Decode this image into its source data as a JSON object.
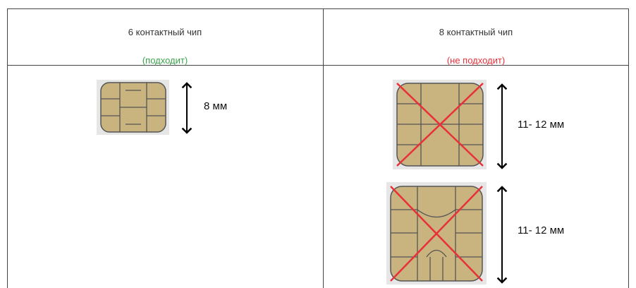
{
  "table": {
    "headers": [
      {
        "title": "6 контактный чип",
        "note": "(подходит)"
      },
      {
        "title": "8 контактный чип",
        "note": "(не подходит)"
      }
    ],
    "cells": [
      {
        "sizes": [
          "8 мм"
        ]
      },
      {
        "sizes": [
          "11- 12 мм",
          "11- 12 мм"
        ]
      }
    ]
  }
}
